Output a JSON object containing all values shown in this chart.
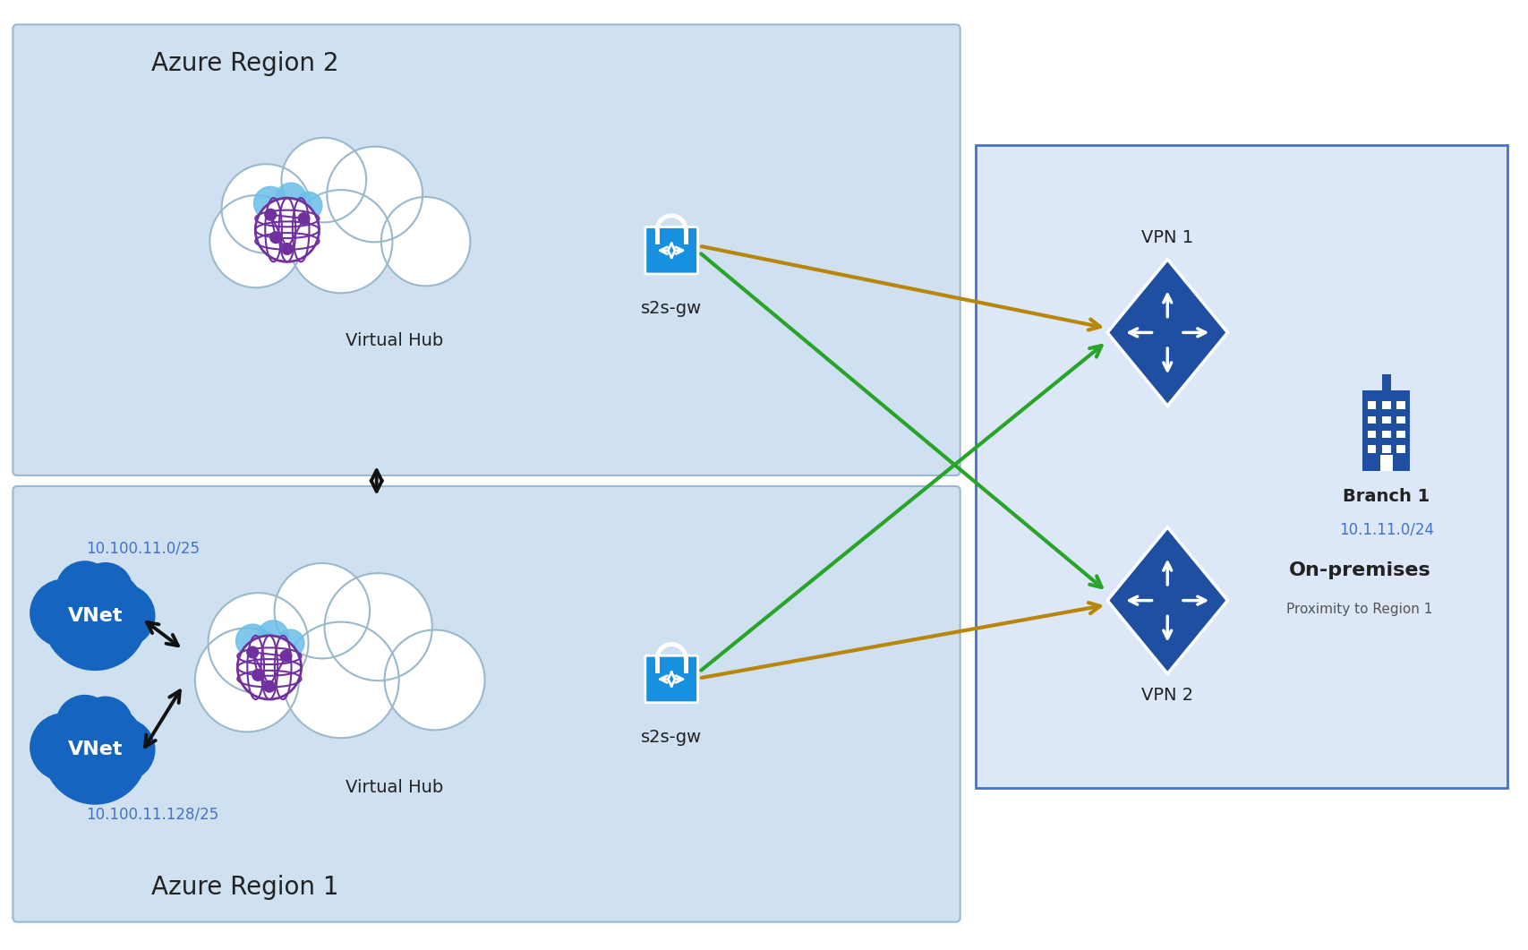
{
  "bg_color": "#ffffff",
  "region2_bg": "#cfe0f0",
  "region1_bg": "#cfe0f0",
  "branch_bg": "#dce8f8",
  "branch_border": "#4472c4",
  "arrow_black": "#111111",
  "arrow_green": "#28a428",
  "arrow_olive": "#b8860b",
  "vnet_color": "#1565c0",
  "lock_color": "#1890e0",
  "vpn_color": "#1f4fa0",
  "hub_cloud_color": "#87ceeb",
  "hub_globe_edge": "#7030a0",
  "hub_globe_fill": "#ffffff",
  "region2_label": "Azure Region 2",
  "region1_label": "Azure Region 1",
  "vhub_label": "Virtual Hub",
  "s2sgw_label": "s2s-gw",
  "vpn1_label": "VPN 1",
  "vpn2_label": "VPN 2",
  "vnet1_label": "VNet",
  "vnet2_label": "VNet",
  "branch_label": "Branch 1",
  "branch_ip": "10.1.11.0/24",
  "onprem_label": "On-premises",
  "proximity_label": "Proximity to Region 1",
  "vnet1_ip": "10.100.11.0/25",
  "vnet2_ip": "10.100.11.128/25",
  "font_region": 20,
  "font_label": 14,
  "font_ip": 12,
  "font_onprem": 16
}
